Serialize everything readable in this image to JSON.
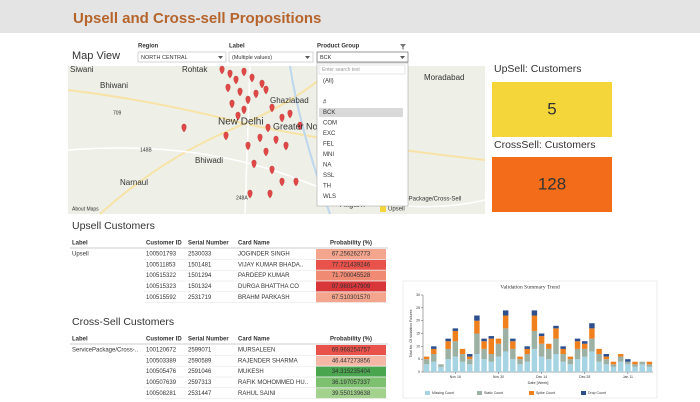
{
  "header": {
    "title": "Upsell and Cross-sell Propositions"
  },
  "filters": [
    {
      "label": "Region",
      "value": "NORTH CENTRAL"
    },
    {
      "label": "Label",
      "value": "(Multiple values)"
    },
    {
      "label": "Product Group",
      "value": "BCK"
    }
  ],
  "dropdown": {
    "placeholder": "Enter search text",
    "options": [
      "(All)",
      "#",
      "BCK",
      "COM",
      "EXC",
      "FEL",
      "MNI",
      "NA",
      "SSL",
      "TH",
      "WLS"
    ],
    "selected_index": 2
  },
  "map": {
    "title": "Map View",
    "places": [
      "Siwani",
      "Rohtak",
      "Bhiwani",
      "Ghaziabad",
      "New Delhi",
      "Greater No",
      "709",
      "148B",
      "Bhiwadi",
      "Narnaul",
      "248A",
      "Aligarh",
      "Moradabad"
    ],
    "attribution": "About Maps",
    "legend": [
      {
        "label": "Upsell",
        "color": "#f5d63a"
      },
      {
        "label": "ServicePackage/Cross-Sell",
        "color": "#f26c1a"
      }
    ]
  },
  "kpis": [
    {
      "title": "UpSell: Customers",
      "value": 5,
      "color": "#f5d63a"
    },
    {
      "title": "CrossSell: Customers",
      "value": 128,
      "color": "#f26c1a"
    }
  ],
  "tables": [
    {
      "title": "Upsell Customers",
      "columns": [
        "Label",
        "Customer ID",
        "Serial Number",
        "Card Name",
        "Probability (%)"
      ],
      "rows": [
        [
          "Upsell",
          "100501793",
          "2530033",
          "JOGINDER SINGH",
          "67.256262773"
        ],
        [
          "",
          "100511853",
          "1501481",
          "VIJAY KUMAR BHADA..",
          "77.721439246"
        ],
        [
          "",
          "100515322",
          "1501294",
          "PARDEEP KUMAR",
          "71.700045528"
        ],
        [
          "",
          "100515323",
          "1501324",
          "DURGA BHATTHA CO",
          "97.960147909"
        ],
        [
          "",
          "100515592",
          "2531719",
          "BRAHM PARKASH",
          "67.510301570"
        ]
      ],
      "row_colors": [
        "#f4a58e",
        "#e8524a",
        "#f08a73",
        "#d9363a",
        "#f4a58e"
      ]
    },
    {
      "title": "Cross-Sell Customers",
      "columns": [
        "Label",
        "Customer ID",
        "Serial Number",
        "Card Name",
        "Probability (%)"
      ],
      "rows": [
        [
          "ServicePackage/Cross-..",
          "100120672",
          "2599071",
          "MURSALEEN",
          "69.968254757"
        ],
        [
          "",
          "100503389",
          "2590589",
          "RAJENDER SHARMA",
          "46.447273856"
        ],
        [
          "",
          "100505476",
          "2591046",
          "MUKESH",
          "34.315235404"
        ],
        [
          "",
          "100507639",
          "2597313",
          "RAFIK MOHOMMED HU..",
          "36.197057337"
        ],
        [
          "",
          "100508281",
          "2531447",
          "RAHUL SAINI",
          "39.550139638"
        ]
      ],
      "row_colors": [
        "#e8524a",
        "#f5b8a6",
        "#4aa64e",
        "#7cc070",
        "#a3d28f"
      ]
    }
  ],
  "chart_data": {
    "type": "bar",
    "title": "Validation Summary Trend",
    "x_label": "Date [Week]",
    "y_label": "Total No. Of Validation Failures",
    "categories": [
      null,
      null,
      null,
      null,
      "Nov 16",
      null,
      null,
      null,
      null,
      null,
      "Nov 30",
      null,
      null,
      null,
      null,
      null,
      "Dec 14",
      null,
      null,
      null,
      null,
      null,
      "Dec 28",
      null,
      null,
      null,
      null,
      null,
      "Jan 11",
      null,
      null,
      null
    ],
    "series": [
      {
        "name": "Missing Count",
        "color": "#a6d4e3",
        "values": [
          3,
          4,
          2,
          5,
          6,
          4,
          3,
          7,
          5,
          4,
          6,
          8,
          5,
          3,
          4,
          9,
          6,
          5,
          7,
          4,
          3,
          5,
          6,
          8,
          4,
          3,
          2,
          4,
          3,
          2,
          3,
          2
        ]
      },
      {
        "name": "Static Count",
        "color": "#9db0a4",
        "values": [
          2,
          3,
          1,
          4,
          6,
          3,
          2,
          8,
          4,
          3,
          5,
          9,
          4,
          2,
          3,
          7,
          5,
          4,
          6,
          3,
          2,
          4,
          3,
          5,
          3,
          2,
          1,
          2,
          1,
          1,
          1,
          1
        ]
      },
      {
        "name": "Spike Count",
        "color": "#f07f1e",
        "values": [
          1,
          2,
          0,
          3,
          4,
          2,
          1,
          5,
          3,
          6,
          2,
          5,
          3,
          1,
          2,
          6,
          3,
          2,
          4,
          2,
          1,
          3,
          2,
          4,
          2,
          1,
          1,
          1,
          0,
          1,
          0,
          1
        ]
      },
      {
        "name": "Drop Count",
        "color": "#2d4f8e",
        "values": [
          0,
          1,
          0,
          1,
          1,
          0,
          1,
          2,
          1,
          1,
          0,
          2,
          1,
          0,
          1,
          2,
          1,
          0,
          1,
          1,
          0,
          1,
          1,
          2,
          0,
          1,
          0,
          0,
          1,
          0,
          0,
          0
        ]
      }
    ],
    "stacked": true,
    "ylim": [
      0,
      30
    ],
    "yticks": [
      0,
      5,
      10,
      15,
      20,
      25,
      30
    ],
    "grid": false
  }
}
